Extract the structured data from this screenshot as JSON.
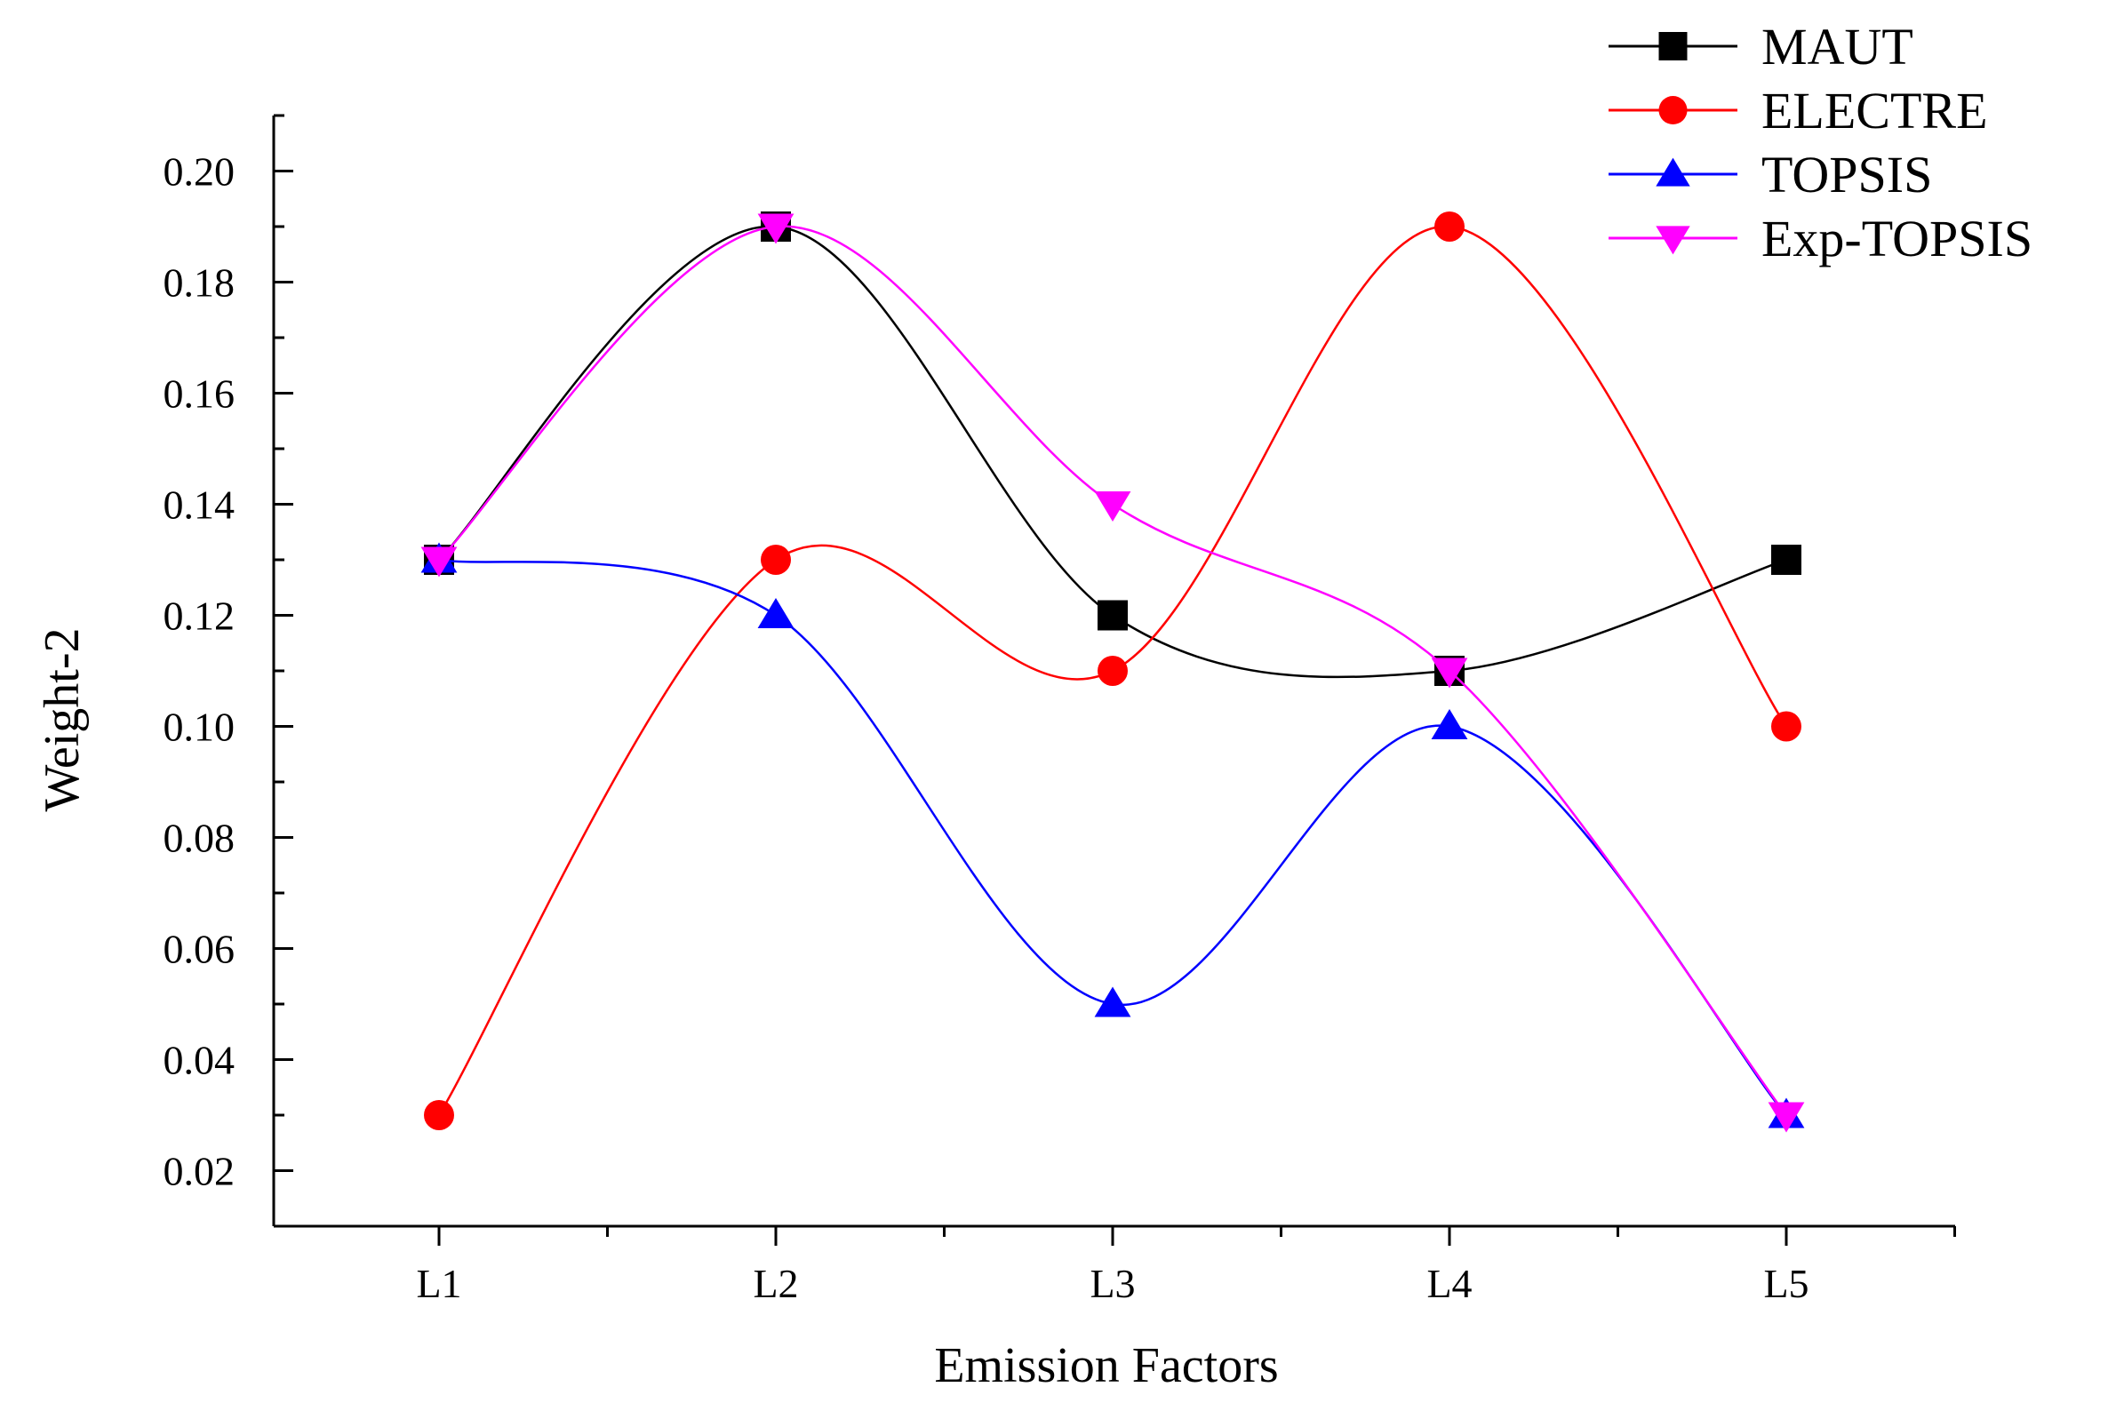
{
  "chart_data": {
    "type": "line",
    "title": "",
    "xlabel": "Emission Factors",
    "ylabel": "Weight-2",
    "categories": [
      "L1",
      "L2",
      "L3",
      "L4",
      "L5"
    ],
    "ylim": [
      0.01,
      0.21
    ],
    "yticks": [
      "0.02",
      "0.04",
      "0.06",
      "0.08",
      "0.10",
      "0.12",
      "0.14",
      "0.16",
      "0.18",
      "0.20"
    ],
    "ytick_values": [
      0.02,
      0.04,
      0.06,
      0.08,
      0.1,
      0.12,
      0.14,
      0.16,
      0.18,
      0.2
    ],
    "grid": false,
    "legend_position": "top-right",
    "series": [
      {
        "name": "MAUT",
        "color": "#000000",
        "marker": "square",
        "values": [
          0.13,
          0.19,
          0.12,
          0.11,
          0.13
        ]
      },
      {
        "name": "ELECTRE",
        "color": "#ff0000",
        "marker": "circle",
        "values": [
          0.03,
          0.13,
          0.11,
          0.19,
          0.1
        ]
      },
      {
        "name": "TOPSIS",
        "color": "#0000ff",
        "marker": "triangle-up",
        "values": [
          0.13,
          0.12,
          0.05,
          0.1,
          0.03
        ]
      },
      {
        "name": "Exp-TOPSIS",
        "color": "#ff00ff",
        "marker": "triangle-down",
        "values": [
          0.13,
          0.19,
          0.14,
          0.11,
          0.03
        ]
      }
    ]
  }
}
